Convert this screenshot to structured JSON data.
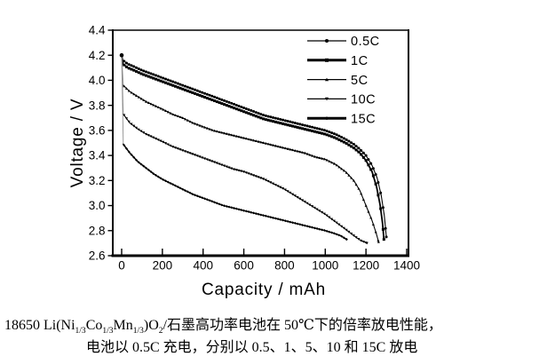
{
  "figure": {
    "background": "#ffffff",
    "ink_color": "#000000",
    "drop_line_color": "#909090"
  },
  "chart_data": {
    "type": "line",
    "title": "",
    "xlabel": "Capacity / mAh",
    "ylabel": "Voltage / V",
    "xlim": [
      0,
      1400
    ],
    "ylim": [
      2.6,
      4.4
    ],
    "xticks": [
      0,
      200,
      400,
      600,
      800,
      1000,
      1200,
      1400
    ],
    "yticks": [
      2.6,
      2.8,
      3.0,
      3.2,
      3.4,
      3.6,
      3.8,
      4.0,
      4.2,
      4.4
    ],
    "ytick_labels": [
      "2.6",
      "2.8",
      "3.0",
      "3.2",
      "3.4",
      "3.6",
      "3.8",
      "4.0",
      "4.2",
      "4.4"
    ],
    "grid": false,
    "legend": {
      "position": "top-right-inside",
      "entries": [
        "0.5C",
        "1C",
        "5C",
        "10C",
        "15C"
      ]
    },
    "start_point": {
      "x": 0,
      "y": 4.2
    },
    "series": [
      {
        "name": "0.5C",
        "marker": "circle",
        "line_width": 1.1,
        "legend_line_width": 1.3,
        "drop_from_start": false,
        "points": [
          [
            0,
            4.2
          ],
          [
            6,
            4.16
          ],
          [
            30,
            4.13
          ],
          [
            60,
            4.11
          ],
          [
            100,
            4.08
          ],
          [
            150,
            4.05
          ],
          [
            200,
            4.02
          ],
          [
            250,
            3.99
          ],
          [
            300,
            3.96
          ],
          [
            350,
            3.93
          ],
          [
            400,
            3.9
          ],
          [
            450,
            3.87
          ],
          [
            500,
            3.84
          ],
          [
            550,
            3.81
          ],
          [
            600,
            3.78
          ],
          [
            650,
            3.75
          ],
          [
            700,
            3.72
          ],
          [
            750,
            3.7
          ],
          [
            800,
            3.68
          ],
          [
            850,
            3.66
          ],
          [
            900,
            3.64
          ],
          [
            950,
            3.62
          ],
          [
            1000,
            3.6
          ],
          [
            1050,
            3.57
          ],
          [
            1100,
            3.53
          ],
          [
            1140,
            3.49
          ],
          [
            1170,
            3.45
          ],
          [
            1200,
            3.4
          ],
          [
            1230,
            3.32
          ],
          [
            1255,
            3.22
          ],
          [
            1275,
            3.08
          ],
          [
            1290,
            2.92
          ],
          [
            1300,
            2.75
          ]
        ]
      },
      {
        "name": "1C",
        "marker": "square",
        "line_width": 1.8,
        "legend_line_width": 3,
        "drop_from_start": false,
        "points": [
          [
            0,
            4.2
          ],
          [
            6,
            4.13
          ],
          [
            30,
            4.1
          ],
          [
            60,
            4.08
          ],
          [
            100,
            4.05
          ],
          [
            150,
            4.02
          ],
          [
            200,
            3.99
          ],
          [
            250,
            3.96
          ],
          [
            300,
            3.93
          ],
          [
            350,
            3.9
          ],
          [
            400,
            3.87
          ],
          [
            450,
            3.84
          ],
          [
            500,
            3.81
          ],
          [
            550,
            3.78
          ],
          [
            600,
            3.75
          ],
          [
            650,
            3.72
          ],
          [
            700,
            3.69
          ],
          [
            750,
            3.67
          ],
          [
            800,
            3.65
          ],
          [
            850,
            3.63
          ],
          [
            900,
            3.61
          ],
          [
            950,
            3.59
          ],
          [
            1000,
            3.57
          ],
          [
            1050,
            3.54
          ],
          [
            1100,
            3.5
          ],
          [
            1140,
            3.46
          ],
          [
            1170,
            3.42
          ],
          [
            1200,
            3.36
          ],
          [
            1230,
            3.27
          ],
          [
            1252,
            3.15
          ],
          [
            1270,
            3.0
          ],
          [
            1282,
            2.85
          ],
          [
            1288,
            2.73
          ]
        ]
      },
      {
        "name": "5C",
        "marker": "triangle-up",
        "line_width": 1.1,
        "legend_line_width": 1.3,
        "drop_from_start": true,
        "points": [
          [
            0,
            4.2
          ],
          [
            8,
            3.96
          ],
          [
            40,
            3.91
          ],
          [
            80,
            3.87
          ],
          [
            120,
            3.83
          ],
          [
            160,
            3.8
          ],
          [
            200,
            3.77
          ],
          [
            250,
            3.73
          ],
          [
            300,
            3.7
          ],
          [
            350,
            3.66
          ],
          [
            400,
            3.63
          ],
          [
            450,
            3.6
          ],
          [
            500,
            3.58
          ],
          [
            550,
            3.56
          ],
          [
            600,
            3.54
          ],
          [
            650,
            3.52
          ],
          [
            700,
            3.5
          ],
          [
            750,
            3.48
          ],
          [
            800,
            3.46
          ],
          [
            850,
            3.44
          ],
          [
            900,
            3.42
          ],
          [
            950,
            3.39
          ],
          [
            1000,
            3.37
          ],
          [
            1050,
            3.33
          ],
          [
            1100,
            3.27
          ],
          [
            1140,
            3.2
          ],
          [
            1170,
            3.12
          ],
          [
            1200,
            3.0
          ],
          [
            1230,
            2.88
          ],
          [
            1250,
            2.78
          ],
          [
            1262,
            2.71
          ]
        ]
      },
      {
        "name": "10C",
        "marker": "triangle-down",
        "line_width": 1.1,
        "legend_line_width": 1.3,
        "drop_from_start": true,
        "points": [
          [
            0,
            4.2
          ],
          [
            8,
            3.73
          ],
          [
            40,
            3.66
          ],
          [
            80,
            3.61
          ],
          [
            120,
            3.57
          ],
          [
            160,
            3.54
          ],
          [
            200,
            3.51
          ],
          [
            250,
            3.47
          ],
          [
            300,
            3.44
          ],
          [
            350,
            3.41
          ],
          [
            400,
            3.38
          ],
          [
            450,
            3.35
          ],
          [
            500,
            3.32
          ],
          [
            550,
            3.29
          ],
          [
            600,
            3.27
          ],
          [
            650,
            3.24
          ],
          [
            700,
            3.21
          ],
          [
            750,
            3.17
          ],
          [
            800,
            3.13
          ],
          [
            850,
            3.08
          ],
          [
            900,
            3.03
          ],
          [
            950,
            2.98
          ],
          [
            1000,
            2.93
          ],
          [
            1050,
            2.87
          ],
          [
            1100,
            2.81
          ],
          [
            1140,
            2.76
          ],
          [
            1175,
            2.72
          ],
          [
            1205,
            2.7
          ]
        ]
      },
      {
        "name": "15C",
        "marker": "diamond",
        "line_width": 1.5,
        "legend_line_width": 3,
        "drop_from_start": true,
        "points": [
          [
            0,
            4.2
          ],
          [
            8,
            3.49
          ],
          [
            40,
            3.42
          ],
          [
            80,
            3.35
          ],
          [
            120,
            3.3
          ],
          [
            160,
            3.25
          ],
          [
            200,
            3.21
          ],
          [
            250,
            3.17
          ],
          [
            300,
            3.13
          ],
          [
            350,
            3.09
          ],
          [
            400,
            3.06
          ],
          [
            450,
            3.03
          ],
          [
            500,
            3.0
          ],
          [
            550,
            2.98
          ],
          [
            600,
            2.96
          ],
          [
            650,
            2.94
          ],
          [
            700,
            2.92
          ],
          [
            750,
            2.9
          ],
          [
            800,
            2.88
          ],
          [
            850,
            2.86
          ],
          [
            900,
            2.84
          ],
          [
            950,
            2.82
          ],
          [
            1000,
            2.8
          ],
          [
            1040,
            2.78
          ],
          [
            1075,
            2.76
          ],
          [
            1105,
            2.73
          ]
        ]
      }
    ]
  },
  "caption": {
    "line1_segments": [
      {
        "t": "18650 Li(Ni"
      },
      {
        "t": "1/3",
        "sub": true
      },
      {
        "t": "Co"
      },
      {
        "t": "1/3",
        "sub": true
      },
      {
        "t": "Mn"
      },
      {
        "t": "1/3",
        "sub": true
      },
      {
        "t": ")O"
      },
      {
        "t": "2",
        "sub": true
      },
      {
        "t": "/石墨高功率电池在 50℃下的倍率放电性能，"
      }
    ],
    "line2": "电池以 0.5C 充电，分别以 0.5、1、5、10 和 15C 放电"
  }
}
